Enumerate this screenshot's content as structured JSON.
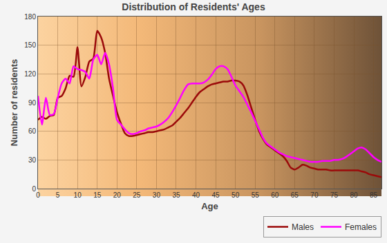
{
  "chart_data": {
    "type": "line",
    "title": "Distribution of Residents' Ages",
    "x_label": "Age",
    "y_label": "Number of residents",
    "x": [
      0,
      1,
      2,
      3,
      4,
      5,
      6,
      7,
      8,
      9,
      10,
      11,
      12,
      13,
      14,
      15,
      16,
      17,
      18,
      19,
      20,
      21,
      22,
      23,
      24,
      25,
      26,
      27,
      28,
      29,
      30,
      31,
      32,
      33,
      34,
      35,
      36,
      37,
      38,
      39,
      40,
      41,
      42,
      43,
      44,
      45,
      46,
      47,
      48,
      49,
      50,
      51,
      52,
      53,
      54,
      55,
      56,
      57,
      58,
      59,
      60,
      61,
      62,
      63,
      64,
      65,
      66,
      67,
      68,
      69,
      70,
      71,
      72,
      73,
      74,
      75,
      76,
      77,
      78,
      79,
      80,
      81,
      82,
      83,
      84,
      85,
      86,
      87
    ],
    "series": [
      {
        "name": "Males",
        "color": "#9b0a0a",
        "values": [
          72,
          75,
          73,
          76,
          77,
          95,
          97,
          105,
          118,
          117,
          148,
          107,
          117,
          133,
          136,
          165,
          158,
          142,
          115,
          97,
          80,
          68,
          58,
          55,
          55,
          56,
          57,
          58,
          59,
          59,
          60,
          61,
          62,
          64,
          66,
          70,
          74,
          79,
          84,
          90,
          96,
          101,
          104,
          107,
          109,
          110,
          111,
          112,
          112,
          113,
          113,
          112,
          108,
          98,
          85,
          72,
          60,
          52,
          46,
          43,
          40,
          37,
          34,
          29,
          22,
          20,
          22,
          25,
          24,
          22,
          21,
          20,
          20,
          20,
          19,
          19,
          19,
          19,
          19,
          19,
          19,
          19,
          18,
          17,
          15,
          14,
          13,
          12
        ]
      },
      {
        "name": "Females",
        "color": "#ff00ff",
        "values": [
          97,
          67,
          95,
          77,
          78,
          95,
          110,
          115,
          110,
          128,
          125,
          124,
          122,
          115,
          135,
          140,
          130,
          142,
          130,
          105,
          72,
          67,
          62,
          58,
          57,
          58,
          60,
          61,
          63,
          64,
          65,
          67,
          70,
          74,
          80,
          87,
          95,
          103,
          109,
          110,
          110,
          110,
          111,
          114,
          119,
          125,
          128,
          128,
          125,
          117,
          108,
          102,
          96,
          88,
          80,
          71,
          62,
          53,
          47,
          44,
          41,
          38,
          36,
          34,
          33,
          32,
          31,
          30,
          29,
          28,
          28,
          28,
          29,
          29,
          29,
          30,
          30,
          31,
          33,
          36,
          39,
          42,
          43,
          41,
          37,
          33,
          30,
          28
        ]
      }
    ],
    "xlim": [
      0,
      87
    ],
    "xticks": [
      0,
      5,
      10,
      15,
      20,
      25,
      30,
      35,
      40,
      45,
      50,
      55,
      60,
      65,
      70,
      75,
      80,
      85
    ],
    "ylim": [
      0,
      180
    ],
    "yticks": [
      0,
      30,
      60,
      90,
      120,
      150,
      180
    ],
    "grid": true,
    "legend": "bottom-right"
  }
}
